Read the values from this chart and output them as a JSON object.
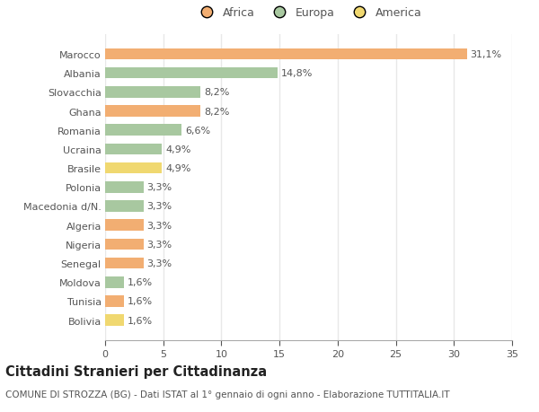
{
  "countries": [
    "Marocco",
    "Albania",
    "Slovacchia",
    "Ghana",
    "Romania",
    "Ucraina",
    "Brasile",
    "Polonia",
    "Macedonia d/N.",
    "Algeria",
    "Nigeria",
    "Senegal",
    "Moldova",
    "Tunisia",
    "Bolivia"
  ],
  "values": [
    31.1,
    14.8,
    8.2,
    8.2,
    6.6,
    4.9,
    4.9,
    3.3,
    3.3,
    3.3,
    3.3,
    3.3,
    1.6,
    1.6,
    1.6
  ],
  "labels": [
    "31,1%",
    "14,8%",
    "8,2%",
    "8,2%",
    "6,6%",
    "4,9%",
    "4,9%",
    "3,3%",
    "3,3%",
    "3,3%",
    "3,3%",
    "3,3%",
    "1,6%",
    "1,6%",
    "1,6%"
  ],
  "continent": [
    "Africa",
    "Europa",
    "Europa",
    "Africa",
    "Europa",
    "Europa",
    "America",
    "Europa",
    "Europa",
    "Africa",
    "Africa",
    "Africa",
    "Europa",
    "Africa",
    "America"
  ],
  "colors": {
    "Africa": "#F2AE72",
    "Europa": "#A8C8A0",
    "America": "#F0D870"
  },
  "background_color": "#ffffff",
  "grid_color": "#e8e8e8",
  "title": "Cittadini Stranieri per Cittadinanza",
  "subtitle": "COMUNE DI STROZZA (BG) - Dati ISTAT al 1° gennaio di ogni anno - Elaborazione TUTTITALIA.IT",
  "xlim": [
    0,
    35
  ],
  "xticks": [
    0,
    5,
    10,
    15,
    20,
    25,
    30,
    35
  ],
  "bar_height": 0.6,
  "label_fontsize": 8,
  "tick_fontsize": 8,
  "title_fontsize": 10.5,
  "subtitle_fontsize": 7.5,
  "legend_fontsize": 9
}
